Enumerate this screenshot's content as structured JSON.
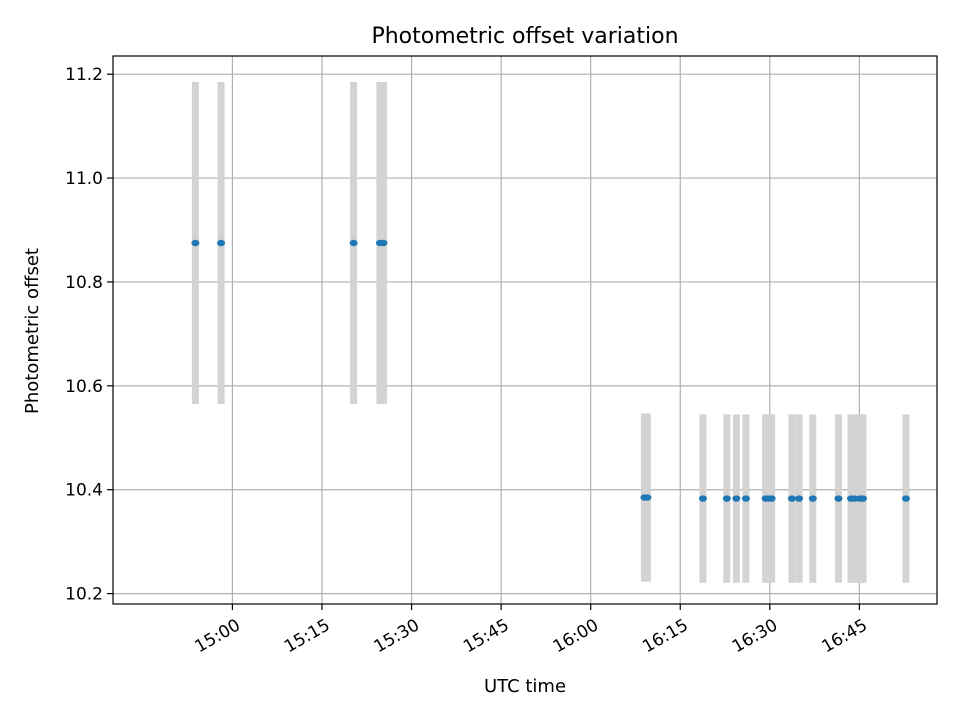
{
  "chart_data": {
    "type": "scatter",
    "title": "Photometric offset variation",
    "xlabel": "UTC time",
    "ylabel": "Photometric offset",
    "x_is_time": true,
    "xlim": [
      "14:40",
      "16:58"
    ],
    "ylim": [
      10.18,
      11.235
    ],
    "x_ticks": [
      "15:00",
      "15:15",
      "15:30",
      "15:45",
      "16:00",
      "16:15",
      "16:30",
      "16:45"
    ],
    "y_ticks": [
      10.2,
      10.4,
      10.6,
      10.8,
      11.0,
      11.2
    ],
    "grid": true,
    "marker_color": "#1f77b4",
    "errorbar_color": "#d3d3d3",
    "series": [
      {
        "points": [
          {
            "t": "14:53.8",
            "y": 10.875,
            "err": 0.31
          },
          {
            "t": "14:58.1",
            "y": 10.875,
            "err": 0.31
          },
          {
            "t": "15:20.3",
            "y": 10.875,
            "err": 0.31
          },
          {
            "t": "15:24.7",
            "y": 10.875,
            "err": 0.31
          },
          {
            "t": "15:25.3",
            "y": 10.875,
            "err": 0.31
          },
          {
            "t": "16:09.0",
            "y": 10.385,
            "err": 0.162
          },
          {
            "t": "16:09.5",
            "y": 10.385,
            "err": 0.162
          },
          {
            "t": "16:18.8",
            "y": 10.383,
            "err": 0.162
          },
          {
            "t": "16:22.8",
            "y": 10.383,
            "err": 0.162
          },
          {
            "t": "16:24.4",
            "y": 10.383,
            "err": 0.162
          },
          {
            "t": "16:26.0",
            "y": 10.383,
            "err": 0.162
          },
          {
            "t": "16:29.3",
            "y": 10.383,
            "err": 0.162
          },
          {
            "t": "16:29.8",
            "y": 10.383,
            "err": 0.162
          },
          {
            "t": "16:30.3",
            "y": 10.383,
            "err": 0.162
          },
          {
            "t": "16:33.7",
            "y": 10.383,
            "err": 0.162
          },
          {
            "t": "16:34.9",
            "y": 10.383,
            "err": 0.162
          },
          {
            "t": "16:37.2",
            "y": 10.383,
            "err": 0.162
          },
          {
            "t": "16:41.5",
            "y": 10.383,
            "err": 0.162
          },
          {
            "t": "16:43.6",
            "y": 10.383,
            "err": 0.162
          },
          {
            "t": "16:44.2",
            "y": 10.383,
            "err": 0.162
          },
          {
            "t": "16:45.1",
            "y": 10.383,
            "err": 0.162
          },
          {
            "t": "16:45.6",
            "y": 10.383,
            "err": 0.162
          },
          {
            "t": "16:52.8",
            "y": 10.383,
            "err": 0.162
          }
        ]
      }
    ]
  }
}
